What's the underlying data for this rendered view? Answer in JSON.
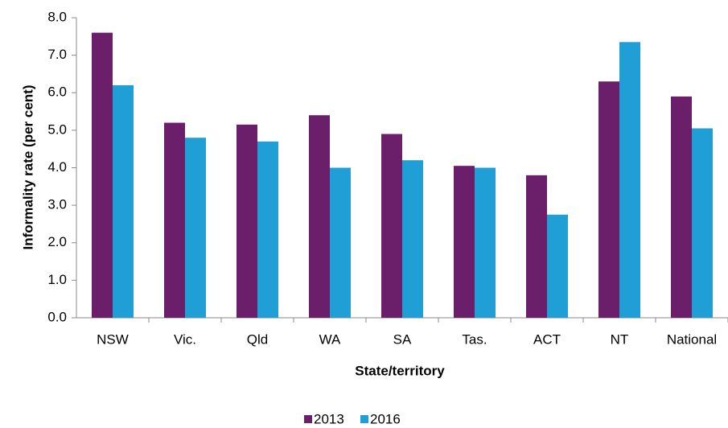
{
  "chart_data": {
    "type": "bar",
    "x_label": "State/territory",
    "y_label": "Informality rate (per cent)",
    "categories": [
      "NSW",
      "Vic.",
      "Qld",
      "WA",
      "SA",
      "Tas.",
      "ACT",
      "NT",
      "National"
    ],
    "series": [
      {
        "name": "2013",
        "color": "#6b1f6b",
        "values": [
          7.6,
          5.2,
          5.15,
          5.4,
          4.9,
          4.05,
          3.8,
          6.3,
          5.9
        ]
      },
      {
        "name": "2016",
        "color": "#1f9fd6",
        "values": [
          6.2,
          4.8,
          4.7,
          4.0,
          4.2,
          4.0,
          2.75,
          7.35,
          5.05
        ]
      }
    ],
    "ylim": [
      0,
      8
    ],
    "yticks": [
      {
        "value": 0,
        "label": "0.0"
      },
      {
        "value": 1,
        "label": "1.0"
      },
      {
        "value": 2,
        "label": "2.0"
      },
      {
        "value": 3,
        "label": "3.0"
      },
      {
        "value": 4,
        "label": "4.0"
      },
      {
        "value": 5,
        "label": "5.0"
      },
      {
        "value": 6,
        "label": "6.0"
      },
      {
        "value": 7,
        "label": "7.0"
      },
      {
        "value": 8,
        "label": "8.0"
      }
    ],
    "legend": "bottom"
  }
}
